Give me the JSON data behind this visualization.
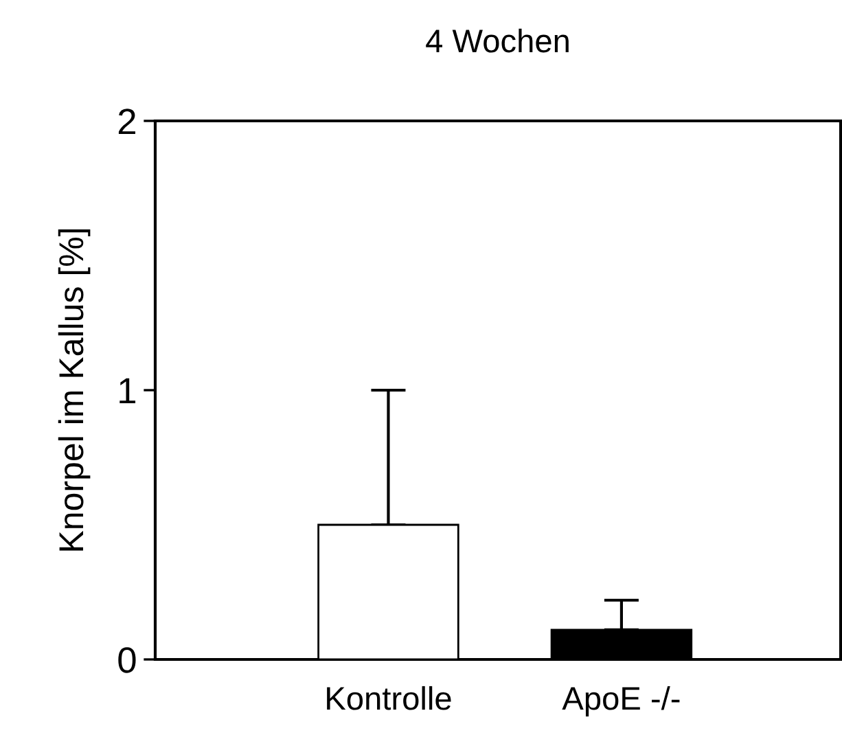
{
  "chart_data": {
    "type": "bar",
    "title": "4 Wochen",
    "ylabel": "Knorpel im Kallus [%]",
    "categories": [
      "Kontrolle",
      "ApoE -/-"
    ],
    "values": [
      0.5,
      0.11
    ],
    "colors": [
      "#ffffff",
      "#000000"
    ],
    "errors": [
      [
        0.5,
        1.0
      ],
      [
        0.11,
        0.22
      ]
    ],
    "ylim": [
      0,
      2
    ],
    "yticks": [
      0,
      1,
      2
    ],
    "grid": false,
    "legend": false
  }
}
